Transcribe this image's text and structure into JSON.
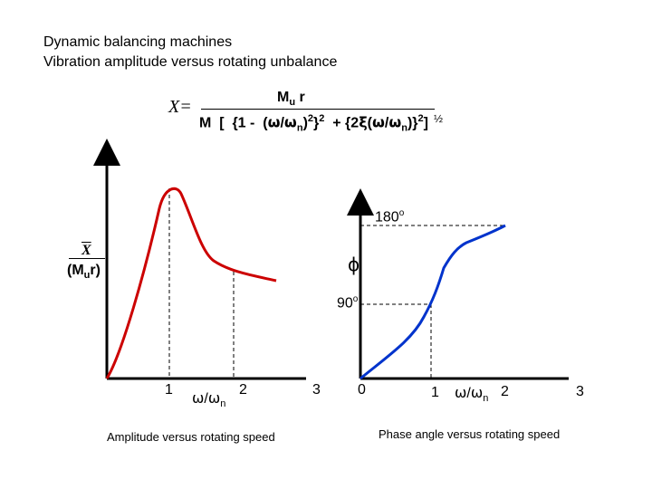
{
  "title": {
    "line1": "Dynamic balancing machines",
    "line2": "Vibration amplitude versus rotating unbalance"
  },
  "equation": {
    "lhs": "X=",
    "numerator": "Mu r",
    "denominator": "M  [  {1 -  (ω/ωn)2}2  + {2ξ(ω/ωn)}2]",
    "exponent": "½"
  },
  "left_chart": {
    "y_label_top": "X",
    "y_label_bottom": "(Mur)",
    "x_ticks": [
      "1",
      "2",
      "3"
    ],
    "x_axis_label": "ω/ωn",
    "caption": "Amplitude versus rotating speed",
    "curve_color": "#cc0000"
  },
  "right_chart": {
    "y_label": "ϕ",
    "level_high": "180o",
    "level_mid": "90o",
    "x_ticks": [
      "0",
      "1",
      "2",
      "3"
    ],
    "x_axis_label": "ω/ωn",
    "caption": "Phase angle versus rotating speed",
    "curve_color": "#0033cc"
  },
  "colors": {
    "axis": "#000000",
    "dashed": "#000000"
  }
}
